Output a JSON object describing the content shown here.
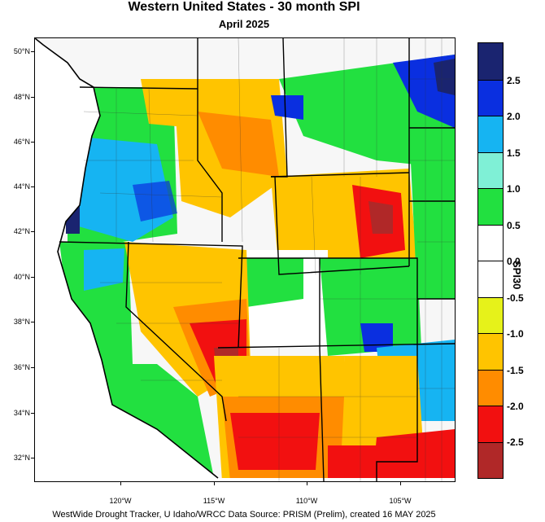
{
  "title": "Western United States - 30 month SPI",
  "subtitle": "April 2025",
  "footer": "WestWide Drought Tracker, U Idaho/WRCC Data Source: PRISM (Prelim), created 16 MAY 2025",
  "colorbar": {
    "title": "SPI30",
    "tick_labels": [
      "2.5",
      "2.0",
      "1.5",
      "1.0",
      "0.5",
      "0.0",
      "-0.5",
      "-1.0",
      "-1.5",
      "-2.0",
      "-2.5"
    ],
    "colors": [
      "#1a2470",
      "#0a2fe0",
      "#16b4f2",
      "#7ff0d6",
      "#22e040",
      "#ffffff",
      "#ffffff",
      "#e6f21a",
      "#ffc400",
      "#ff8c00",
      "#f21010",
      "#b02828"
    ]
  },
  "axes": {
    "lat_labels": [
      "50°N",
      "48°N",
      "46°N",
      "44°N",
      "42°N",
      "40°N",
      "38°N",
      "36°N",
      "34°N",
      "32°N"
    ],
    "lon_labels": [
      "120°W",
      "115°W",
      "110°W",
      "105°W"
    ]
  },
  "map_regions": [
    {
      "name": "pacific-northwest-coast",
      "spi": 1.5
    },
    {
      "name": "oregon-interior",
      "spi": 1.5
    },
    {
      "name": "montana-west",
      "spi": -1.5
    },
    {
      "name": "montana-northeast",
      "spi": 2.5
    },
    {
      "name": "wyoming-east",
      "spi": -2.0
    },
    {
      "name": "nevada-south",
      "spi": -2.5
    },
    {
      "name": "arizona",
      "spi": -2.0
    },
    {
      "name": "new-mexico-south",
      "spi": -2.0
    },
    {
      "name": "colorado-southeast",
      "spi": 1.5
    },
    {
      "name": "california-north",
      "spi": 1.0
    }
  ]
}
